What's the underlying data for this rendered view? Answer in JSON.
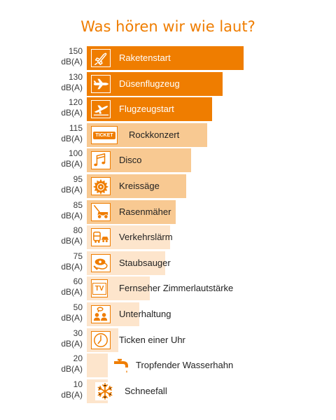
{
  "title": "Was hören wir wie laut?",
  "unit": "dB(A)",
  "colors": {
    "strong": "#ef7d00",
    "light": "#f8c992",
    "pale": "#fde5cc"
  },
  "chart_data": {
    "type": "bar",
    "title": "Was hören wir wie laut?",
    "orientation": "horizontal",
    "categories": [
      "Raketenstart",
      "Düsenflugzeug",
      "Flugzeugstart",
      "Rockkonzert",
      "Disco",
      "Kreissäge",
      "Rasenmäher",
      "Verkehrslärm",
      "Staubsauger",
      "Fernseher Zimmerlautstärke",
      "Unterhaltung",
      "Ticken einer Uhr",
      "Tropfender Wasserhahn",
      "Schneefall"
    ],
    "values": [
      150,
      130,
      120,
      115,
      100,
      95,
      85,
      80,
      75,
      60,
      50,
      30,
      20,
      10
    ],
    "unit": "dB(A)"
  },
  "rows": [
    {
      "value": "150",
      "unit": "dB(A)",
      "label": "Raketenstart",
      "icon": "rocket-icon",
      "tone": "strong"
    },
    {
      "value": "130",
      "unit": "dB(A)",
      "label": "Düsenflugzeug",
      "icon": "jet-plane-icon",
      "tone": "strong"
    },
    {
      "value": "120",
      "unit": "dB(A)",
      "label": "Flugzeugstart",
      "icon": "plane-takeoff-icon",
      "tone": "strong"
    },
    {
      "value": "115",
      "unit": "dB(A)",
      "label": "Rockkonzert",
      "icon": "ticket-icon",
      "tone": "light",
      "icon_text": "TICKET"
    },
    {
      "value": "100",
      "unit": "dB(A)",
      "label": "Disco",
      "icon": "music-notes-icon",
      "tone": "light"
    },
    {
      "value": "95",
      "unit": "dB(A)",
      "label": "Kreissäge",
      "icon": "saw-blade-icon",
      "tone": "light"
    },
    {
      "value": "85",
      "unit": "dB(A)",
      "label": "Rasenmäher",
      "icon": "lawn-mower-icon",
      "tone": "light"
    },
    {
      "value": "80",
      "unit": "dB(A)",
      "label": "Verkehrslärm",
      "icon": "traffic-icon",
      "tone": "pale"
    },
    {
      "value": "75",
      "unit": "dB(A)",
      "label": "Staubsauger",
      "icon": "vacuum-cleaner-icon",
      "tone": "pale"
    },
    {
      "value": "60",
      "unit": "dB(A)",
      "label": "Fernseher Zimmerlautstärke",
      "icon": "tv-icon",
      "tone": "pale",
      "icon_text": "TV"
    },
    {
      "value": "50",
      "unit": "dB(A)",
      "label": "Unterhaltung",
      "icon": "conversation-icon",
      "tone": "pale"
    },
    {
      "value": "30",
      "unit": "dB(A)",
      "label": "Ticken einer Uhr",
      "icon": "clock-icon",
      "tone": "pale"
    },
    {
      "value": "20",
      "unit": "dB(A)",
      "label": "Tropfender Wasserhahn",
      "icon": "faucet-icon",
      "tone": "pale"
    },
    {
      "value": "10",
      "unit": "dB(A)",
      "label": "Schneefall",
      "icon": "snowflake-icon",
      "tone": "pale"
    }
  ]
}
